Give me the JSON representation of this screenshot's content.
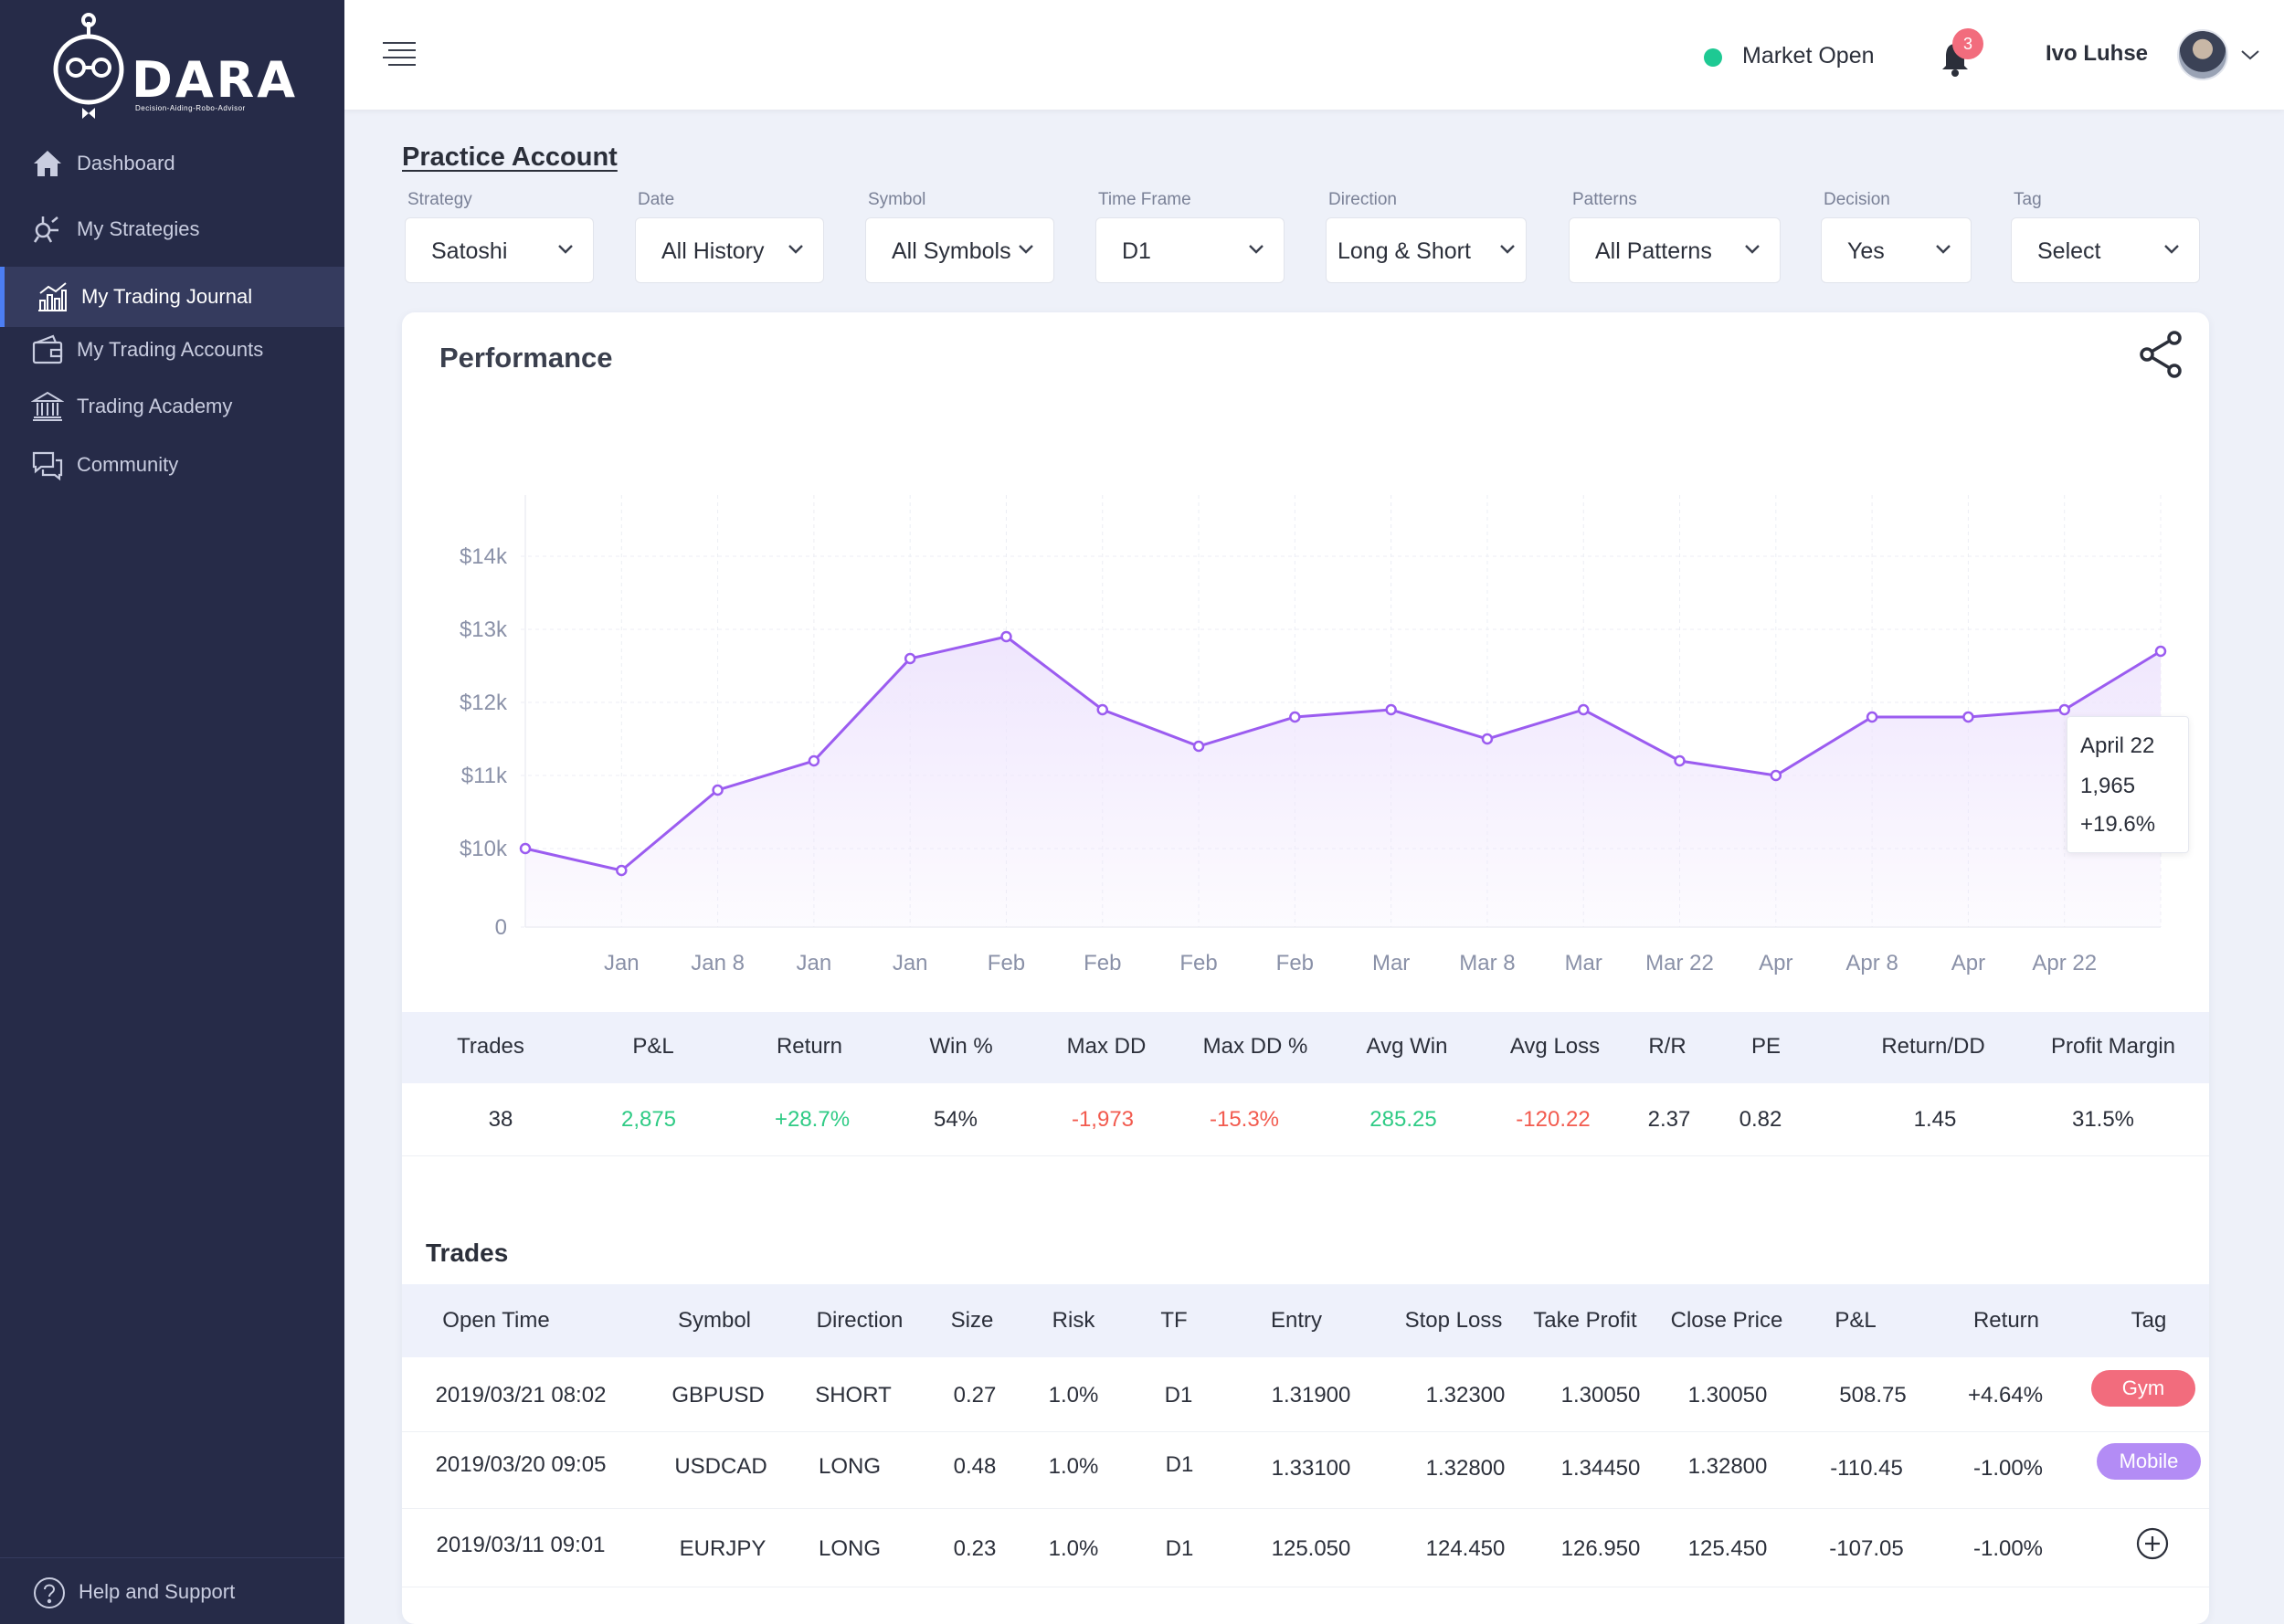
{
  "app": {
    "logo_word": "DARA",
    "logo_sub": "Decision-Aiding-Robo-Advisor"
  },
  "sidebar": {
    "items": [
      {
        "label": "Dashboard",
        "icon": "home-icon"
      },
      {
        "label": "My Strategies",
        "icon": "strategy-icon"
      },
      {
        "label": "My Trading Journal",
        "icon": "chart-bars-icon",
        "active": true
      },
      {
        "label": "My Trading Accounts",
        "icon": "wallet-icon"
      },
      {
        "label": "Trading Academy",
        "icon": "bank-icon"
      },
      {
        "label": "Community",
        "icon": "chat-icon"
      }
    ],
    "help": {
      "label": "Help and Support",
      "icon": "question-icon"
    }
  },
  "topbar": {
    "market_status": "Market Open",
    "market_color": "#1ec993",
    "notification_count": "3",
    "user_name": "Ivo Luhse"
  },
  "page": {
    "title": "Practice Account"
  },
  "filters": [
    {
      "label": "Strategy",
      "value": "Satoshi"
    },
    {
      "label": "Date",
      "value": "All History"
    },
    {
      "label": "Symbol",
      "value": "All Symbols"
    },
    {
      "label": "Time Frame",
      "value": "D1"
    },
    {
      "label": "Direction",
      "value": "Long & Short"
    },
    {
      "label": "Patterns",
      "value": "All Patterns"
    },
    {
      "label": "Decision",
      "value": "Yes"
    },
    {
      "label": "Tag",
      "value": "Select"
    }
  ],
  "performance": {
    "title": "Performance",
    "tooltip": {
      "date": "April 22",
      "value": "1,965",
      "change": "+19.6%"
    }
  },
  "chart_data": {
    "type": "area",
    "y_ticks": [
      "0",
      "$10k",
      "$11k",
      "$12k",
      "$13k",
      "$14k"
    ],
    "x_tick_labels": [
      "Jan",
      "Jan 8",
      "Jan",
      "Jan",
      "Feb",
      "Feb",
      "Feb",
      "Feb",
      "Mar",
      "Mar 8",
      "Mar",
      "Mar 22",
      "Apr",
      "Apr 8",
      "Apr",
      "Apr 22"
    ],
    "values": [
      10000,
      9700,
      10800,
      11200,
      12600,
      12900,
      11900,
      11400,
      11800,
      11900,
      11500,
      11900,
      11200,
      11000,
      11800,
      11800,
      11900,
      12700
    ],
    "line_color": "#9b5cf0",
    "fill_color": "#efe6fd",
    "grid": true
  },
  "stats": {
    "headers": [
      "Trades",
      "P&L",
      "Return",
      "Win %",
      "Max DD",
      "Max DD %",
      "Avg Win",
      "Avg Loss",
      "R/R",
      "PE",
      "Return/DD",
      "Profit Margin"
    ],
    "values": [
      "38",
      "2,875",
      "+28.7%",
      "54%",
      "-1,973",
      "-15.3%",
      "285.25",
      "-120.22",
      "2.37",
      "0.82",
      "1.45",
      "31.5%"
    ]
  },
  "trades": {
    "title": "Trades",
    "headers": [
      "Open Time",
      "Symbol",
      "Direction",
      "Size",
      "Risk",
      "TF",
      "Entry",
      "Stop Loss",
      "Take Profit",
      "Close Price",
      "P&L",
      "Return",
      "Tag"
    ],
    "rows": [
      {
        "open_time": "2019/03/21 08:02",
        "symbol": "GBPUSD",
        "direction": "SHORT",
        "size": "0.27",
        "risk": "1.0%",
        "tf": "D1",
        "entry": "1.31900",
        "stop_loss": "1.32300",
        "take_profit": "1.30050",
        "close_price": "1.30050",
        "pnl": "508.75",
        "return": "+4.64%",
        "tag": "Gym",
        "tag_color": "#f26c7d"
      },
      {
        "open_time": "2019/03/20 09:05",
        "symbol": "USDCAD",
        "direction": "LONG",
        "size": "0.48",
        "risk": "1.0%",
        "tf": "D1",
        "entry": "1.33100",
        "stop_loss": "1.32800",
        "take_profit": "1.34450",
        "close_price": "1.32800",
        "pnl": "-110.45",
        "return": "-1.00%",
        "tag": "Mobile",
        "tag_color": "#b38cf5"
      },
      {
        "open_time": "2019/03/11 09:01",
        "symbol": "EURJPY",
        "direction": "LONG",
        "size": "0.23",
        "risk": "1.0%",
        "tf": "D1",
        "entry": "125.050",
        "stop_loss": "124.450",
        "take_profit": "126.950",
        "close_price": "125.450",
        "pnl": "-107.05",
        "return": "-1.00%",
        "tag": "",
        "tag_icon": "add-circle-icon"
      }
    ]
  }
}
